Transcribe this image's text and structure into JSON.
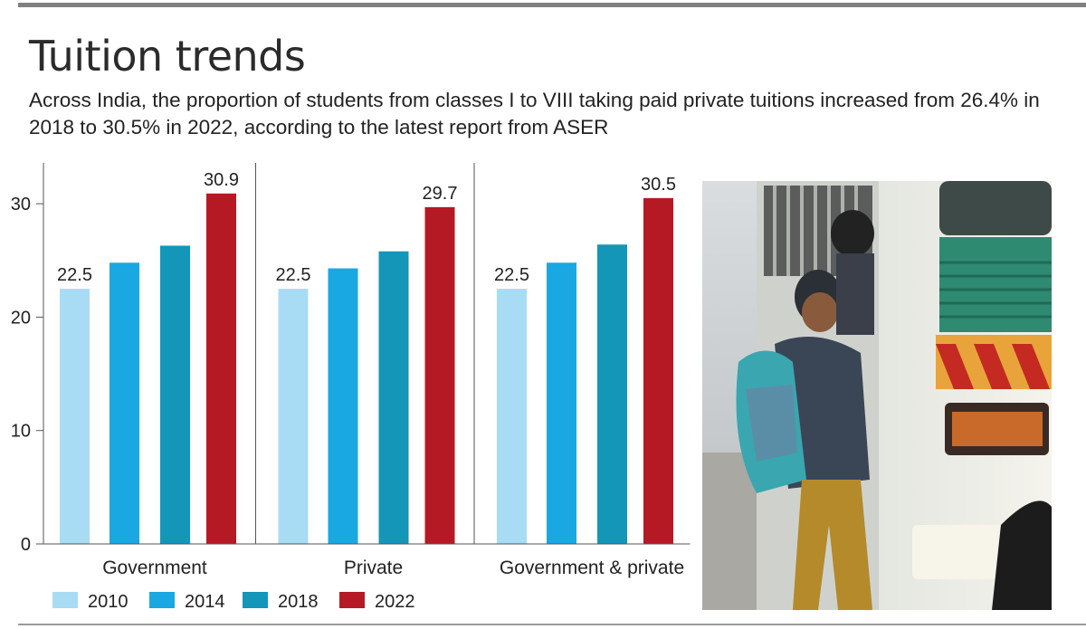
{
  "header": {
    "title": "Tuition trends",
    "subtitle": "Across India, the proportion of students from classes I to VIII taking paid private tuitions increased from 26.4% in 2018 to 30.5% in 2022, according to the latest report from ASER"
  },
  "chart_data": {
    "type": "bar",
    "title": "Tuition trends",
    "categories": [
      "Government",
      "Private",
      "Government & private"
    ],
    "series": [
      {
        "name": "2010",
        "color": "#a8dcf4",
        "values": [
          22.5,
          22.5,
          22.5
        ]
      },
      {
        "name": "2014",
        "color": "#1aa8e2",
        "values": [
          24.8,
          24.3,
          24.8
        ]
      },
      {
        "name": "2018",
        "color": "#1496b8",
        "values": [
          26.3,
          25.8,
          26.4
        ]
      },
      {
        "name": "2022",
        "color": "#b51a24",
        "values": [
          30.9,
          29.7,
          30.5
        ]
      }
    ],
    "data_labels": [
      {
        "category": 0,
        "series": 0,
        "text": "22.5"
      },
      {
        "category": 0,
        "series": 3,
        "text": "30.9"
      },
      {
        "category": 1,
        "series": 0,
        "text": "22.5"
      },
      {
        "category": 1,
        "series": 3,
        "text": "29.7"
      },
      {
        "category": 2,
        "series": 0,
        "text": "22.5"
      },
      {
        "category": 2,
        "series": 3,
        "text": "30.5"
      }
    ],
    "yticks": [
      0,
      10,
      20,
      30
    ],
    "ylim": [
      0,
      34
    ],
    "xlabel": "",
    "ylabel": "",
    "grid": false,
    "legend": "bottom-left"
  },
  "photo": {
    "description_icon": "students-boarding-bus-photo"
  }
}
